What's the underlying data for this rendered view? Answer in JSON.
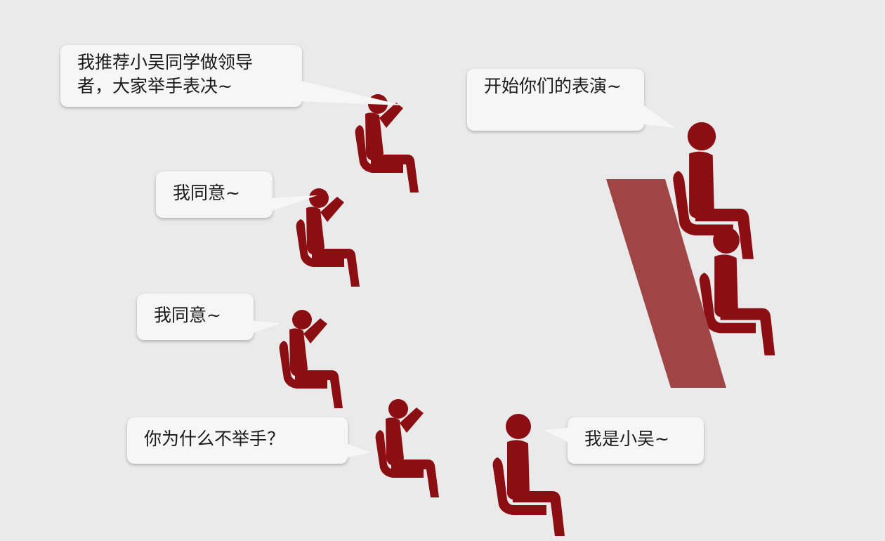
{
  "colors": {
    "background": "#ebeaea",
    "figure": "#8b0e12",
    "podium": "#a04545",
    "bubble": "#f6f6f6",
    "text": "#1a1a1a"
  },
  "bubbles": {
    "recommend": "我推荐小吴同学做领导者，大家举手表决~",
    "agree_1": "我同意~",
    "agree_2": "我同意~",
    "why_no_hand": "你为什么不举手？",
    "i_am_wu": "我是小吴~",
    "start_performance": "开始你们的表演~"
  },
  "icons": {
    "seated_figure": "seated-person-icon",
    "raised_hand_figure": "seated-person-raising-hand-icon",
    "podium": "podium-icon"
  }
}
